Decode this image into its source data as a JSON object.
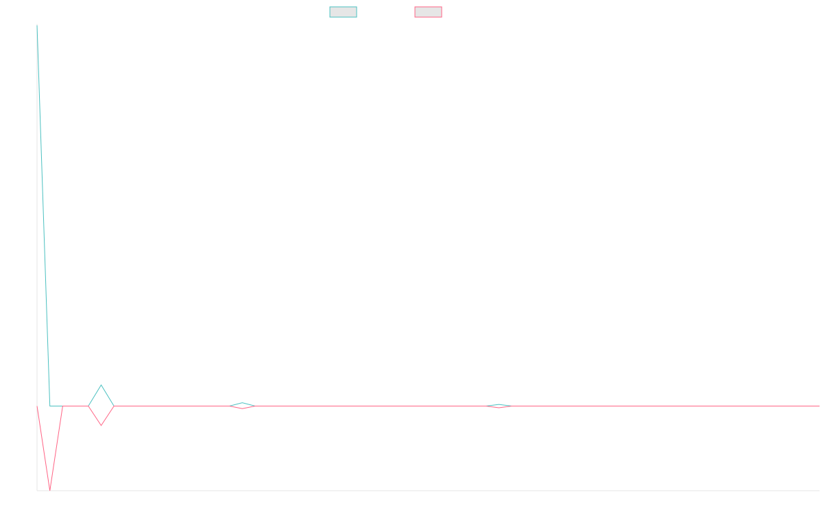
{
  "chart_data": {
    "type": "line",
    "title": "",
    "xlabel": "",
    "ylabel": "",
    "x": [
      0,
      1,
      2,
      3,
      4,
      5,
      6,
      7,
      8,
      9,
      10,
      11,
      12,
      13,
      14,
      15,
      16,
      17,
      18,
      19,
      20,
      21,
      22,
      23,
      24,
      25,
      26,
      27,
      28,
      29,
      30,
      31,
      32,
      33,
      34,
      35,
      36,
      37,
      38,
      39,
      40,
      41,
      42,
      43,
      44,
      45,
      46,
      47,
      48,
      49,
      50,
      51,
      52,
      53,
      54,
      55,
      56,
      57,
      58,
      59,
      60,
      61
    ],
    "xlim": [
      0,
      61
    ],
    "ylim": [
      -10,
      45
    ],
    "grid": false,
    "legend_position": "top-center",
    "series": [
      {
        "name": "",
        "color": "#4bc0c0",
        "values": [
          45,
          0,
          0,
          0,
          0,
          2.5,
          0,
          0,
          0,
          0,
          0,
          0,
          0,
          0,
          0,
          0,
          0.4,
          0,
          0,
          0,
          0,
          0,
          0,
          0,
          0,
          0,
          0,
          0,
          0,
          0,
          0,
          0,
          0,
          0,
          0,
          0,
          0.2,
          0,
          0,
          0,
          0,
          0,
          0,
          0,
          0,
          0,
          0,
          0,
          0,
          0,
          0,
          0,
          0,
          0,
          0,
          0,
          0,
          0,
          0,
          0,
          0,
          0
        ]
      },
      {
        "name": "",
        "color": "#ff6384",
        "values": [
          0,
          -10,
          0,
          0,
          0,
          -2.3,
          0,
          0,
          0,
          0,
          0,
          0,
          0,
          0,
          0,
          0,
          -0.3,
          0,
          0,
          0,
          0,
          0,
          0,
          0,
          0,
          0,
          0,
          0,
          0,
          0,
          0,
          0,
          0,
          0,
          0,
          0,
          -0.2,
          0,
          0,
          0,
          0,
          0,
          0,
          0,
          0,
          0,
          0,
          0,
          0,
          0,
          0,
          0,
          0,
          0,
          0,
          0,
          0,
          0,
          0,
          0,
          0,
          0
        ]
      }
    ]
  }
}
